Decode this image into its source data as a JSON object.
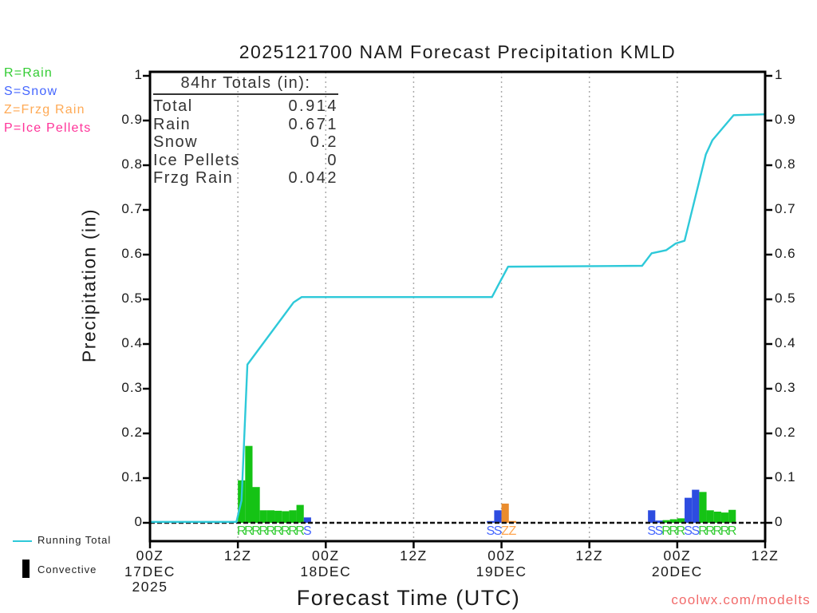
{
  "title": "2025121700 NAM Forecast Precipitation KMLD",
  "type_legend": {
    "items": [
      {
        "label": "R=Rain",
        "color": "#33cc33"
      },
      {
        "label": "S=Snow",
        "color": "#4466ff"
      },
      {
        "label": "Z=Frzg Rain",
        "color": "#ffaa55"
      },
      {
        "label": "P=Ice Pellets",
        "color": "#ff3399"
      }
    ]
  },
  "totals_box": {
    "header": "84hr Totals (in):",
    "rows": [
      {
        "label": "Total",
        "value": "0.914"
      },
      {
        "label": "Rain",
        "value": "0.671"
      },
      {
        "label": "Snow",
        "value": "0.2"
      },
      {
        "label": "Ice Pellets",
        "value": "0"
      },
      {
        "label": "Frzg Rain",
        "value": "0.042"
      }
    ]
  },
  "series_legend": {
    "running_total": "Running Total",
    "convective": "Convective"
  },
  "watermark": "coolwx.com/modelts",
  "colors": {
    "bar_R": "#15c315",
    "bar_S": "#2d4ce0",
    "bar_Z": "#ea8c2d",
    "letter_R": "#33cc33",
    "letter_S": "#4466ff",
    "letter_Z": "#ffa44d",
    "line": "#2ec9d9",
    "watermark": "#f26b6b",
    "axis": "#000000",
    "gridline": "#aaaaaa",
    "zero_dash": "#111111"
  },
  "chart_data": {
    "type": "bar",
    "subtype": "hourly precipitation bars with cumulative line overlay",
    "title": "2025121700 NAM Forecast Precipitation KMLD",
    "xlabel": "Forecast Time (UTC)",
    "ylabel": "Precipitation (in)",
    "ylim": [
      0,
      1
    ],
    "hours_total": 84,
    "grid": "vertical dotted gridlines at interior 12h ticks",
    "yticks": [
      {
        "value": 1.0,
        "label": "1"
      },
      {
        "value": 0.9,
        "label": "0.9"
      },
      {
        "value": 0.8,
        "label": "0.8"
      },
      {
        "value": 0.7,
        "label": "0.7"
      },
      {
        "value": 0.6,
        "label": "0.6"
      },
      {
        "value": 0.5,
        "label": "0.5"
      },
      {
        "value": 0.4,
        "label": "0.4"
      },
      {
        "value": 0.3,
        "label": "0.3"
      },
      {
        "value": 0.2,
        "label": "0.2"
      },
      {
        "value": 0.1,
        "label": "0.1"
      },
      {
        "value": 0.0,
        "label": "0"
      }
    ],
    "xticks": [
      {
        "hour": 0,
        "lines": [
          "00Z",
          "17DEC",
          "2025"
        ]
      },
      {
        "hour": 12,
        "lines": [
          "12Z"
        ]
      },
      {
        "hour": 24,
        "lines": [
          "00Z",
          "18DEC"
        ]
      },
      {
        "hour": 36,
        "lines": [
          "12Z"
        ]
      },
      {
        "hour": 48,
        "lines": [
          "00Z",
          "19DEC"
        ]
      },
      {
        "hour": 60,
        "lines": [
          "12Z"
        ]
      },
      {
        "hour": 72,
        "lines": [
          "00Z",
          "20DEC"
        ]
      },
      {
        "hour": 84,
        "lines": [
          "12Z"
        ]
      }
    ],
    "bars": [
      {
        "hour": 12,
        "type": "R",
        "value": 0.095
      },
      {
        "hour": 13,
        "type": "R",
        "value": 0.172
      },
      {
        "hour": 14,
        "type": "R",
        "value": 0.08
      },
      {
        "hour": 15,
        "type": "R",
        "value": 0.028
      },
      {
        "hour": 16,
        "type": "R",
        "value": 0.028
      },
      {
        "hour": 17,
        "type": "R",
        "value": 0.027
      },
      {
        "hour": 18,
        "type": "R",
        "value": 0.026
      },
      {
        "hour": 19,
        "type": "R",
        "value": 0.028
      },
      {
        "hour": 20,
        "type": "R",
        "value": 0.04
      },
      {
        "hour": 21,
        "type": "S",
        "value": 0.012
      },
      {
        "hour": 46,
        "type": "S",
        "value": 0.004
      },
      {
        "hour": 47,
        "type": "S",
        "value": 0.028
      },
      {
        "hour": 48,
        "type": "Z",
        "value": 0.043
      },
      {
        "hour": 49,
        "type": "Z",
        "value": 0.004
      },
      {
        "hour": 68,
        "type": "S",
        "value": 0.028
      },
      {
        "hour": 69,
        "type": "S",
        "value": 0.005
      },
      {
        "hour": 70,
        "type": "R",
        "value": 0.006
      },
      {
        "hour": 71,
        "type": "R",
        "value": 0.008
      },
      {
        "hour": 72,
        "type": "R",
        "value": 0.01
      },
      {
        "hour": 73,
        "type": "S",
        "value": 0.056
      },
      {
        "hour": 74,
        "type": "S",
        "value": 0.074
      },
      {
        "hour": 75,
        "type": "R",
        "value": 0.069
      },
      {
        "hour": 76,
        "type": "R",
        "value": 0.028
      },
      {
        "hour": 77,
        "type": "R",
        "value": 0.025
      },
      {
        "hour": 78,
        "type": "R",
        "value": 0.023
      },
      {
        "hour": 79,
        "type": "R",
        "value": 0.029
      }
    ],
    "running_total_line": [
      [
        0,
        0.002
      ],
      [
        11.8,
        0.002
      ],
      [
        12.5,
        0.05
      ],
      [
        13.3,
        0.354
      ],
      [
        19.6,
        0.493
      ],
      [
        20.7,
        0.505
      ],
      [
        46.7,
        0.505
      ],
      [
        47.5,
        0.53
      ],
      [
        48.9,
        0.573
      ],
      [
        67.2,
        0.575
      ],
      [
        68.5,
        0.603
      ],
      [
        70.5,
        0.61
      ],
      [
        71.8,
        0.625
      ],
      [
        73.0,
        0.631
      ],
      [
        75.9,
        0.824
      ],
      [
        76.8,
        0.856
      ],
      [
        79.7,
        0.912
      ],
      [
        84,
        0.914
      ]
    ],
    "convective": {
      "value": 0,
      "style": "dashed black line along y=0"
    }
  }
}
